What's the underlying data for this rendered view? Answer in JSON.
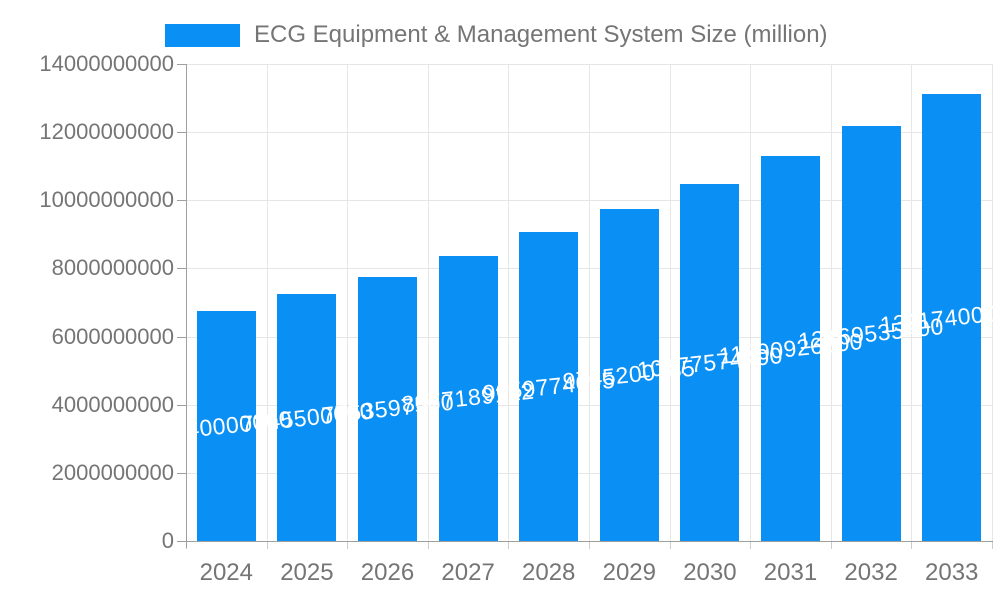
{
  "legend": {
    "swatch_color": "#0a8ff4",
    "label": "ECG Equipment & Management System Size (million)"
  },
  "chart_data": {
    "type": "bar",
    "title": "ECG Equipment & Management System Size (million)",
    "categories": [
      "2024",
      "2025",
      "2026",
      "2027",
      "2028",
      "2029",
      "2030",
      "2031",
      "2032",
      "2033"
    ],
    "values": [
      6740000000,
      7245500000,
      7763597500,
      8377189122,
      9059774695,
      9745200785,
      10477574400,
      11290926500,
      12169535400,
      13117400000
    ],
    "bar_labels": [
      "6740000000",
      "7245500000",
      "7763597500",
      "8377189122",
      "9059774695",
      "9745200785",
      "10477574400",
      "11290926500",
      "12169535400",
      "13117400000"
    ],
    "xlabel": "",
    "ylabel": "",
    "ylim": [
      0,
      14000000000
    ],
    "yticks": [
      0,
      2000000000,
      4000000000,
      6000000000,
      8000000000,
      10000000000,
      12000000000,
      14000000000
    ],
    "ytick_labels": [
      "0",
      "2000000000",
      "4000000000",
      "6000000000",
      "8000000000",
      "10000000000",
      "12000000000",
      "14000000000"
    ],
    "grid": true,
    "legend_position": "top",
    "bar_color": "#0a8ff4",
    "bar_label_color": "#ffffff",
    "axis_text_color": "#757575"
  }
}
